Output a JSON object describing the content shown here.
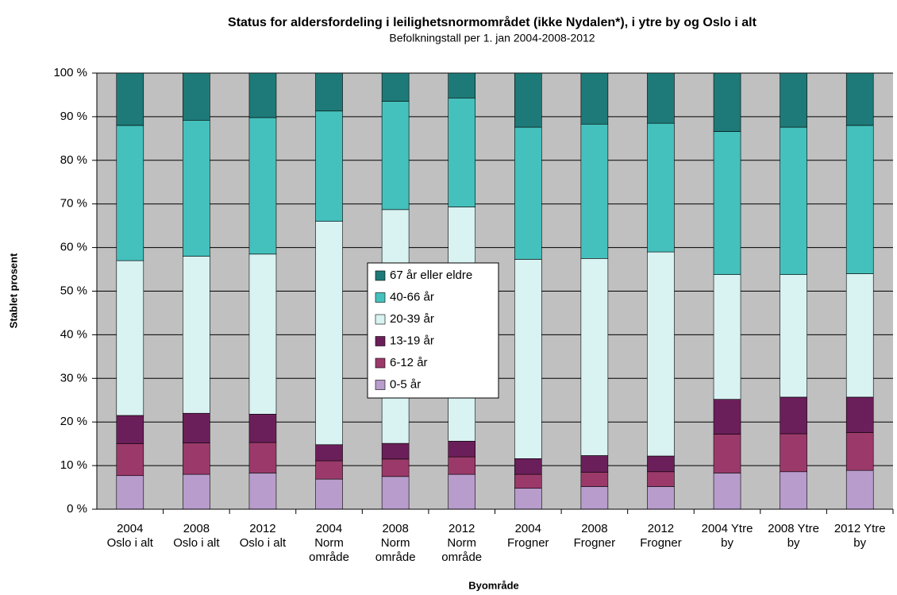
{
  "chart_data": {
    "type": "stacked_bar",
    "title": "Status for aldersfordeling i leilighetsnormområdet (ikke Nydalen*), i ytre by og Oslo i alt",
    "subtitle": "Befolkningstall per 1. jan 2004-2008-2012",
    "y_label": "Stablet prosent",
    "x_label": "Byområde",
    "categories": [
      [
        "2004",
        "Oslo i alt"
      ],
      [
        "2008",
        "Oslo i alt"
      ],
      [
        "2012",
        "Oslo i alt"
      ],
      [
        "2004",
        "Norm",
        "område"
      ],
      [
        "2008",
        "Norm",
        "område"
      ],
      [
        "2012",
        "Norm",
        "område"
      ],
      [
        "2004",
        "Frogner"
      ],
      [
        "2008",
        "Frogner"
      ],
      [
        "2012",
        "Frogner"
      ],
      [
        "2004 Ytre",
        "by"
      ],
      [
        "2008 Ytre",
        "by"
      ],
      [
        "2012 Ytre",
        "by"
      ]
    ],
    "series": [
      {
        "name": "0-5 år",
        "color": "#b89ccc",
        "values": [
          7.7,
          8,
          8.3,
          6.9,
          7.5,
          8,
          4.8,
          5.2,
          5.2,
          8.3,
          8.6,
          8.9
        ]
      },
      {
        "name": "6-12 år",
        "color": "#9b3a6a",
        "values": [
          7.3,
          7.2,
          7,
          4.2,
          4,
          4,
          3.2,
          3.3,
          3.4,
          8.9,
          8.7,
          8.7
        ]
      },
      {
        "name": "13-19 år",
        "color": "#6b1f5a",
        "values": [
          6.5,
          6.8,
          6.5,
          3.7,
          3.6,
          3.6,
          3.6,
          3.8,
          3.6,
          8,
          8.4,
          8.1
        ]
      },
      {
        "name": "20-39 år",
        "color": "#d9f2f2",
        "values": [
          35.5,
          36,
          36.7,
          51.2,
          53.6,
          53.7,
          45.7,
          45.2,
          46.8,
          28.6,
          28.1,
          28.3
        ]
      },
      {
        "name": "40-66 år",
        "color": "#45c1bd",
        "values": [
          31,
          31.2,
          31.3,
          25.3,
          24.8,
          25,
          30.3,
          30.8,
          29.5,
          32.8,
          33.8,
          34
        ]
      },
      {
        "name": "67 år eller eldre",
        "color": "#1e7a78",
        "values": [
          12,
          10.8,
          10.2,
          8.7,
          6.5,
          5.7,
          12.4,
          11.7,
          11.5,
          13.4,
          12.4,
          12
        ]
      }
    ],
    "ylim": [
      0,
      100
    ],
    "yticks": [
      {
        "value": 0,
        "label": "0 %"
      },
      {
        "value": 10,
        "label": "10 %"
      },
      {
        "value": 20,
        "label": "20 %"
      },
      {
        "value": 30,
        "label": "30 %"
      },
      {
        "value": 40,
        "label": "40 %"
      },
      {
        "value": 50,
        "label": "50 %"
      },
      {
        "value": 60,
        "label": "60 %"
      },
      {
        "value": 70,
        "label": "70 %"
      },
      {
        "value": 80,
        "label": "80 %"
      },
      {
        "value": 90,
        "label": "90 %"
      },
      {
        "value": 100,
        "label": "100 %"
      }
    ],
    "grid": true,
    "legend_position": "center",
    "plot_background": "#c0c0c0"
  }
}
